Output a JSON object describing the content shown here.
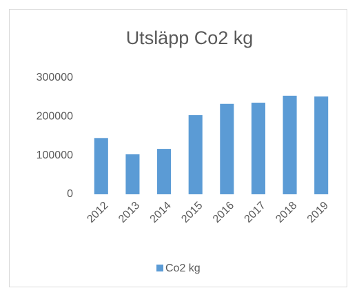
{
  "chart_data": {
    "type": "bar",
    "title": "Utsläpp Co2 kg",
    "categories": [
      "2012",
      "2013",
      "2014",
      "2015",
      "2016",
      "2017",
      "2018",
      "2019"
    ],
    "series": [
      {
        "name": "Co2 kg",
        "color": "#5b9bd5",
        "values": [
          145000,
          103000,
          117000,
          204000,
          233000,
          236000,
          254000,
          252000
        ]
      }
    ],
    "ylim": [
      0,
      300000
    ],
    "yticks": [
      0,
      100000,
      200000,
      300000
    ],
    "grid": false,
    "legend": "bottom"
  }
}
